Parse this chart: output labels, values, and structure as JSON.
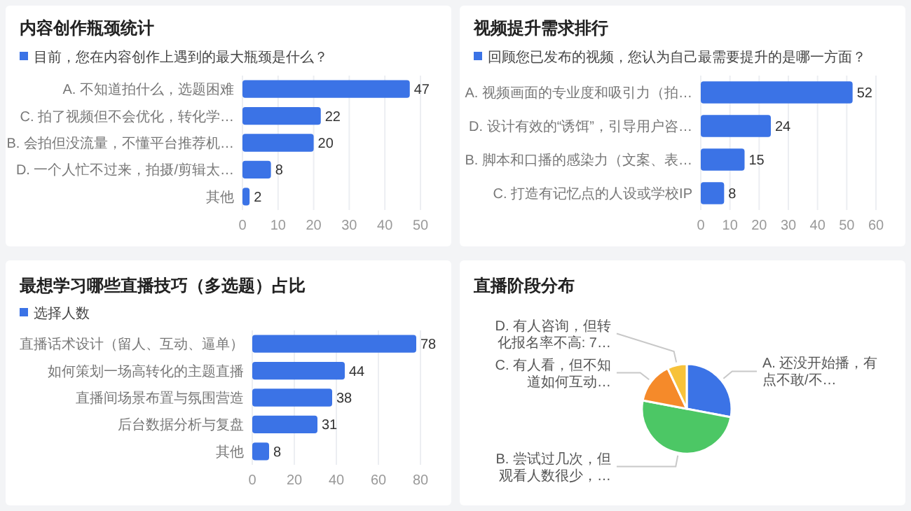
{
  "chart_data": [
    {
      "type": "bar",
      "orientation": "horizontal",
      "title": "内容创作瓶颈统计",
      "categories": [
        "A. 不知道拍什么，选题困难",
        "C. 拍了视频但不会优化，转化学…",
        "B. 会拍但没流量，不懂平台推荐机…",
        "D. 一个人忙不过来，拍摄/剪辑太…",
        "其他"
      ],
      "series": [
        {
          "name": "目前，您在内容创作上遇到的最大瓶颈是什么？",
          "color": "#3b73e6",
          "values": [
            47,
            22,
            20,
            8,
            2
          ]
        }
      ],
      "xlim": [
        0,
        50
      ],
      "xticks": [
        0,
        10,
        20,
        30,
        40,
        50
      ],
      "grid": "x",
      "data_labels": true,
      "legend": "top left"
    },
    {
      "type": "bar",
      "orientation": "horizontal",
      "title": "视频提升需求排行",
      "categories": [
        "A. 视频画面的专业度和吸引力（拍…",
        "D. 设计有效的“诱饵”，引导用户咨…",
        "B. 脚本和口播的感染力（文案、表…",
        "C. 打造有记忆点的人设或学校IP"
      ],
      "series": [
        {
          "name": "回顾您已发布的视频，您认为自己最需要提升的是哪一方面？",
          "color": "#3b73e6",
          "values": [
            52,
            24,
            15,
            8
          ]
        }
      ],
      "xlim": [
        0,
        60
      ],
      "xticks": [
        0,
        10,
        20,
        30,
        40,
        50,
        60
      ],
      "grid": "x",
      "data_labels": true,
      "legend": "top left"
    },
    {
      "type": "bar",
      "orientation": "horizontal",
      "title": "最想学习哪些直播技巧（多选题）占比",
      "categories": [
        "直播话术设计（留人、互动、逼单）",
        "如何策划一场高转化的主题直播",
        "直播间场景布置与氛围营造",
        "后台数据分析与复盘",
        "其他"
      ],
      "series": [
        {
          "name": "选择人数",
          "color": "#3b73e6",
          "values": [
            78,
            44,
            38,
            31,
            8
          ]
        }
      ],
      "xlim": [
        0,
        80
      ],
      "xticks": [
        0,
        20,
        40,
        60,
        80
      ],
      "grid": "x",
      "data_labels": true,
      "legend": "top left"
    },
    {
      "type": "pie",
      "title": "直播阶段分布",
      "categories": [
        "A. 还没开始播，有点不敢/不…",
        "B. 尝试过几次，但观看人数很少，…",
        "C. 有人看，但不知道如何互动…",
        "D. 有人咨询，但转化报名率不高: 7…"
      ],
      "values": [
        28,
        50,
        15,
        7
      ],
      "colors": [
        "#3b73e6",
        "#4cc765",
        "#f58a2a",
        "#f7c23a"
      ]
    }
  ]
}
